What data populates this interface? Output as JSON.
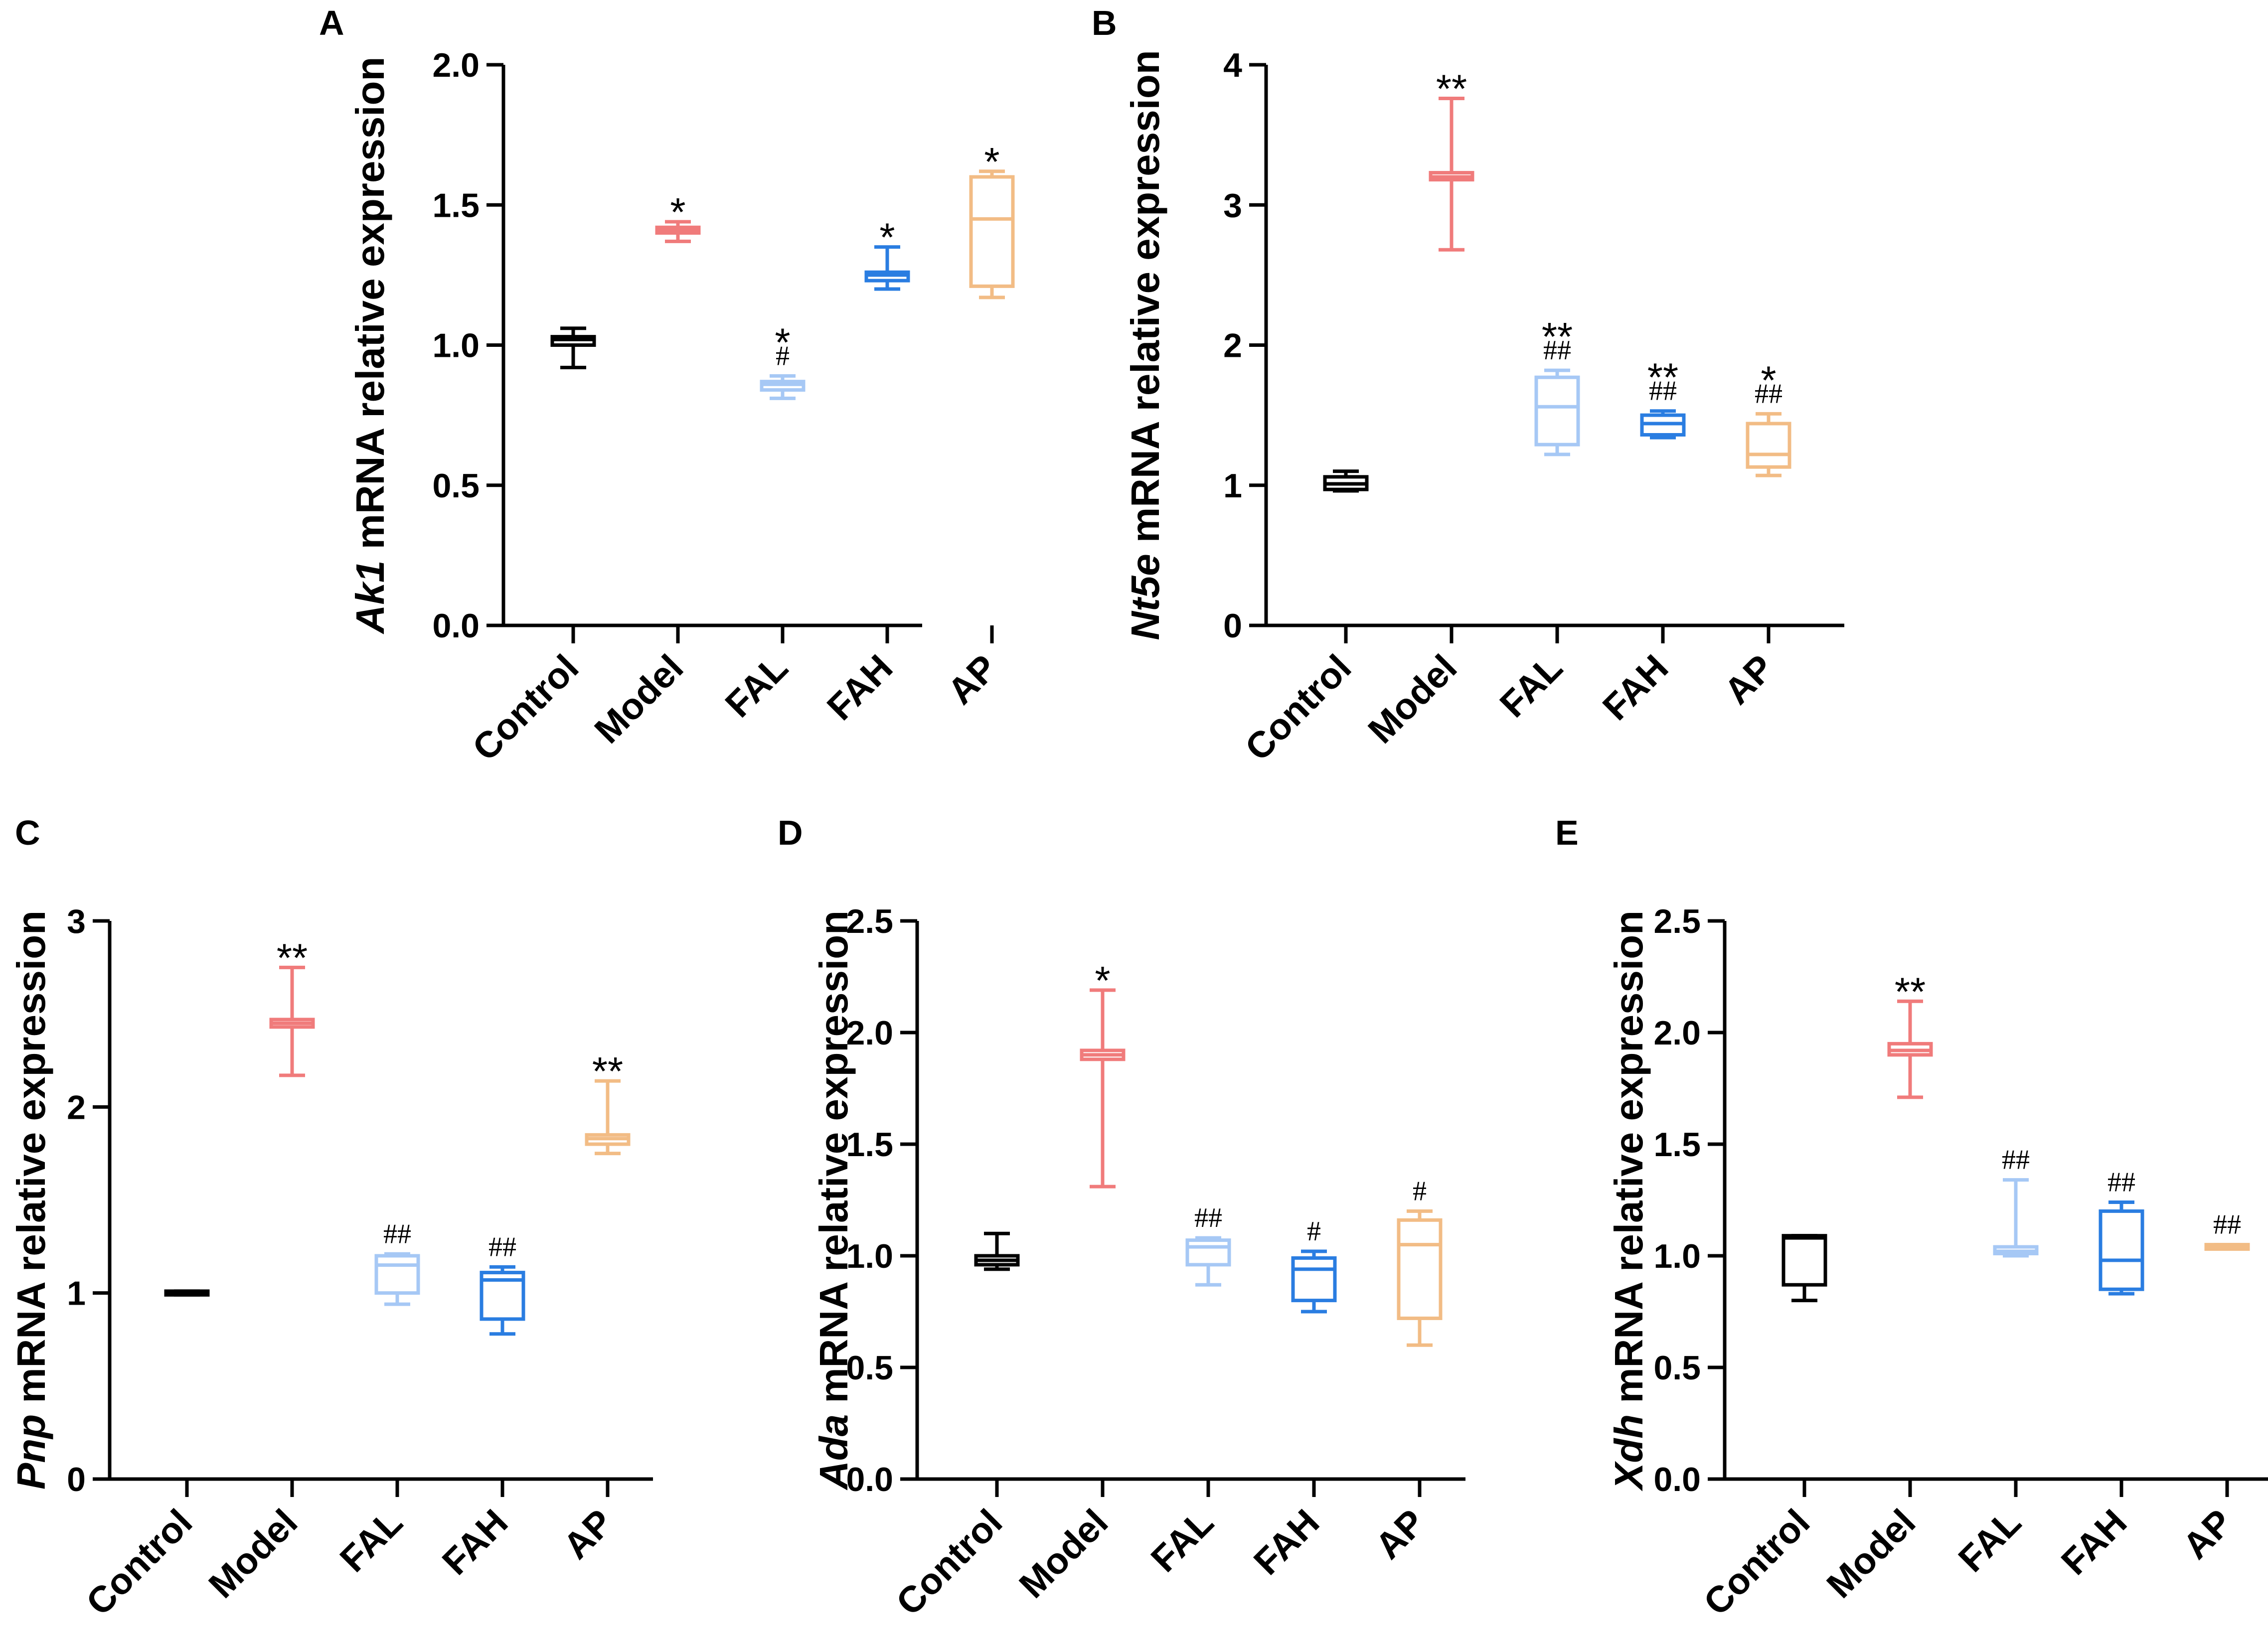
{
  "colors": {
    "Control": "#000000",
    "Model": "#f07b7b",
    "FAL": "#a6c8f5",
    "FAH": "#2a7de1",
    "AP": "#f2bc85"
  },
  "chart_data": [
    {
      "type": "box",
      "panel": "A",
      "ylabel_gene": "Ak1",
      "ylabel_rest": " mRNA relative expression",
      "ylim": [
        0,
        2.0
      ],
      "yticks": [
        "0.0",
        "0.5",
        "1.0",
        "1.5",
        "2.0"
      ],
      "categories": [
        "Control",
        "Model",
        "FAL",
        "FAH",
        "AP"
      ],
      "boxes": [
        {
          "min": 0.92,
          "q1": 1.0,
          "median": 1.02,
          "q3": 1.03,
          "max": 1.06,
          "sig_star": "",
          "sig_hash": ""
        },
        {
          "min": 1.37,
          "q1": 1.4,
          "median": 1.41,
          "q3": 1.42,
          "max": 1.44,
          "sig_star": "*",
          "sig_hash": ""
        },
        {
          "min": 0.81,
          "q1": 0.84,
          "median": 0.86,
          "q3": 0.87,
          "max": 0.89,
          "sig_star": "*",
          "sig_hash": "#"
        },
        {
          "min": 1.2,
          "q1": 1.23,
          "median": 1.25,
          "q3": 1.26,
          "max": 1.35,
          "sig_star": "*",
          "sig_hash": ""
        },
        {
          "min": 1.17,
          "q1": 1.21,
          "median": 1.45,
          "q3": 1.6,
          "max": 1.62,
          "sig_star": "*",
          "sig_hash": ""
        }
      ]
    },
    {
      "type": "box",
      "panel": "B",
      "ylabel_gene": "Nt5e",
      "ylabel_rest": " mRNA relative expression",
      "ylim": [
        0,
        4
      ],
      "yticks": [
        "0",
        "1",
        "2",
        "3",
        "4"
      ],
      "categories": [
        "Control",
        "Model",
        "FAL",
        "FAH",
        "AP"
      ],
      "boxes": [
        {
          "min": 0.96,
          "q1": 0.97,
          "median": 1.01,
          "q3": 1.06,
          "max": 1.1,
          "sig_star": "",
          "sig_hash": ""
        },
        {
          "min": 2.68,
          "q1": 3.18,
          "median": 3.2,
          "q3": 3.23,
          "max": 3.76,
          "sig_star": "**",
          "sig_hash": ""
        },
        {
          "min": 1.22,
          "q1": 1.29,
          "median": 1.56,
          "q3": 1.77,
          "max": 1.82,
          "sig_star": "**",
          "sig_hash": "##"
        },
        {
          "min": 1.34,
          "q1": 1.36,
          "median": 1.44,
          "q3": 1.5,
          "max": 1.53,
          "sig_star": "**",
          "sig_hash": "##"
        },
        {
          "min": 1.07,
          "q1": 1.13,
          "median": 1.22,
          "q3": 1.44,
          "max": 1.51,
          "sig_star": "*",
          "sig_hash": "##"
        }
      ]
    },
    {
      "type": "box",
      "panel": "C",
      "ylabel_gene": "Pnp",
      "ylabel_rest": " mRNA relative expression",
      "ylim": [
        0,
        3
      ],
      "yticks": [
        "0",
        "1",
        "2",
        "3"
      ],
      "categories": [
        "Control",
        "Model",
        "FAL",
        "FAH",
        "AP"
      ],
      "boxes": [
        {
          "min": 0.99,
          "q1": 0.99,
          "median": 1.0,
          "q3": 1.01,
          "max": 1.01,
          "sig_star": "",
          "sig_hash": ""
        },
        {
          "min": 2.17,
          "q1": 2.43,
          "median": 2.45,
          "q3": 2.47,
          "max": 2.75,
          "sig_star": "**",
          "sig_hash": ""
        },
        {
          "min": 0.94,
          "q1": 1.0,
          "median": 1.15,
          "q3": 1.2,
          "max": 1.21,
          "sig_star": "",
          "sig_hash": "##"
        },
        {
          "min": 0.78,
          "q1": 0.86,
          "median": 1.07,
          "q3": 1.11,
          "max": 1.14,
          "sig_star": "",
          "sig_hash": "##"
        },
        {
          "min": 1.75,
          "q1": 1.8,
          "median": 1.83,
          "q3": 1.85,
          "max": 2.14,
          "sig_star": "**",
          "sig_hash": ""
        }
      ]
    },
    {
      "type": "box",
      "panel": "D",
      "ylabel_gene": "Ada",
      "ylabel_rest": " mRNA relative expression",
      "ylim": [
        0,
        2.5
      ],
      "yticks": [
        "0.0",
        "0.5",
        "1.0",
        "1.5",
        "2.0",
        "2.5"
      ],
      "categories": [
        "Control",
        "Model",
        "FAL",
        "FAH",
        "AP"
      ],
      "boxes": [
        {
          "min": 0.94,
          "q1": 0.96,
          "median": 0.98,
          "q3": 1.0,
          "max": 1.1,
          "sig_star": "",
          "sig_hash": ""
        },
        {
          "min": 1.31,
          "q1": 1.88,
          "median": 1.9,
          "q3": 1.92,
          "max": 2.19,
          "sig_star": "*",
          "sig_hash": ""
        },
        {
          "min": 0.87,
          "q1": 0.96,
          "median": 1.04,
          "q3": 1.07,
          "max": 1.08,
          "sig_star": "",
          "sig_hash": "##"
        },
        {
          "min": 0.75,
          "q1": 0.8,
          "median": 0.94,
          "q3": 0.99,
          "max": 1.02,
          "sig_star": "",
          "sig_hash": "#"
        },
        {
          "min": 0.6,
          "q1": 0.72,
          "median": 1.05,
          "q3": 1.16,
          "max": 1.2,
          "sig_star": "",
          "sig_hash": "#"
        }
      ]
    },
    {
      "type": "box",
      "panel": "E",
      "ylabel_gene": "Xdh",
      "ylabel_rest": " mRNA relative expression",
      "ylim": [
        0,
        2.5
      ],
      "yticks": [
        "0.0",
        "0.5",
        "1.0",
        "1.5",
        "2.0",
        "2.5"
      ],
      "categories": [
        "Control",
        "Model",
        "FAL",
        "FAH",
        "AP"
      ],
      "boxes": [
        {
          "min": 0.8,
          "q1": 0.87,
          "median": 1.08,
          "q3": 1.09,
          "max": 1.09,
          "sig_star": "",
          "sig_hash": ""
        },
        {
          "min": 1.71,
          "q1": 1.9,
          "median": 1.92,
          "q3": 1.95,
          "max": 2.14,
          "sig_star": "**",
          "sig_hash": ""
        },
        {
          "min": 1.0,
          "q1": 1.01,
          "median": 1.02,
          "q3": 1.04,
          "max": 1.34,
          "sig_star": "",
          "sig_hash": "##"
        },
        {
          "min": 0.83,
          "q1": 0.85,
          "median": 0.98,
          "q3": 1.2,
          "max": 1.24,
          "sig_star": "",
          "sig_hash": "##"
        },
        {
          "min": 1.03,
          "q1": 1.03,
          "median": 1.04,
          "q3": 1.05,
          "max": 1.05,
          "sig_star": "",
          "sig_hash": "##"
        }
      ]
    }
  ]
}
